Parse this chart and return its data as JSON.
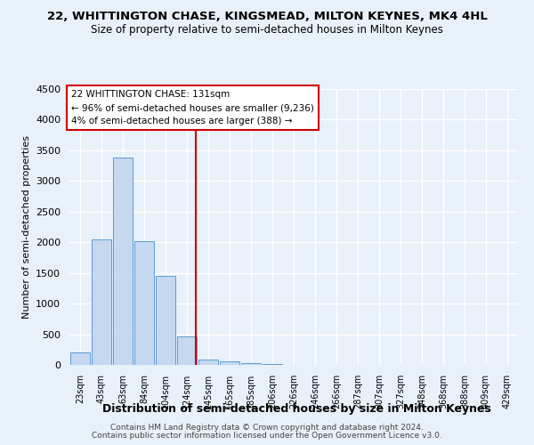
{
  "title_line1": "22, WHITTINGTON CHASE, KINGSMEAD, MILTON KEYNES, MK4 4HL",
  "title_line2": "Size of property relative to semi-detached houses in Milton Keynes",
  "xlabel": "Distribution of semi-detached houses by size in Milton Keynes",
  "ylabel": "Number of semi-detached properties",
  "categories": [
    "23sqm",
    "43sqm",
    "63sqm",
    "84sqm",
    "104sqm",
    "124sqm",
    "145sqm",
    "165sqm",
    "185sqm",
    "206sqm",
    "226sqm",
    "246sqm",
    "266sqm",
    "287sqm",
    "307sqm",
    "327sqm",
    "348sqm",
    "368sqm",
    "388sqm",
    "409sqm",
    "429sqm"
  ],
  "bar_heights": [
    200,
    2050,
    3380,
    2020,
    1450,
    460,
    80,
    60,
    25,
    10,
    5,
    3,
    2,
    1,
    1,
    0,
    0,
    0,
    0,
    0,
    0
  ],
  "bar_color": "#c5d8f0",
  "bar_edge_color": "#5b9bd5",
  "ylim": [
    0,
    4500
  ],
  "yticks": [
    0,
    500,
    1000,
    1500,
    2000,
    2500,
    3000,
    3500,
    4000,
    4500
  ],
  "red_line_x": 5.43,
  "annotation_line1": "22 WHITTINGTON CHASE: 131sqm",
  "annotation_line2": "← 96% of semi-detached houses are smaller (9,236)",
  "annotation_line3": "4% of semi-detached houses are larger (388) →",
  "annotation_box_color": "#ffffff",
  "annotation_box_edge_color": "#cc0000",
  "red_line_color": "#cc0000",
  "footer_line1": "Contains HM Land Registry data © Crown copyright and database right 2024.",
  "footer_line2": "Contains public sector information licensed under the Open Government Licence v3.0.",
  "background_color": "#e8f0fa",
  "grid_color": "#ffffff",
  "title1_fontsize": 9.5,
  "title2_fontsize": 8.5,
  "footer_fontsize": 6.5
}
